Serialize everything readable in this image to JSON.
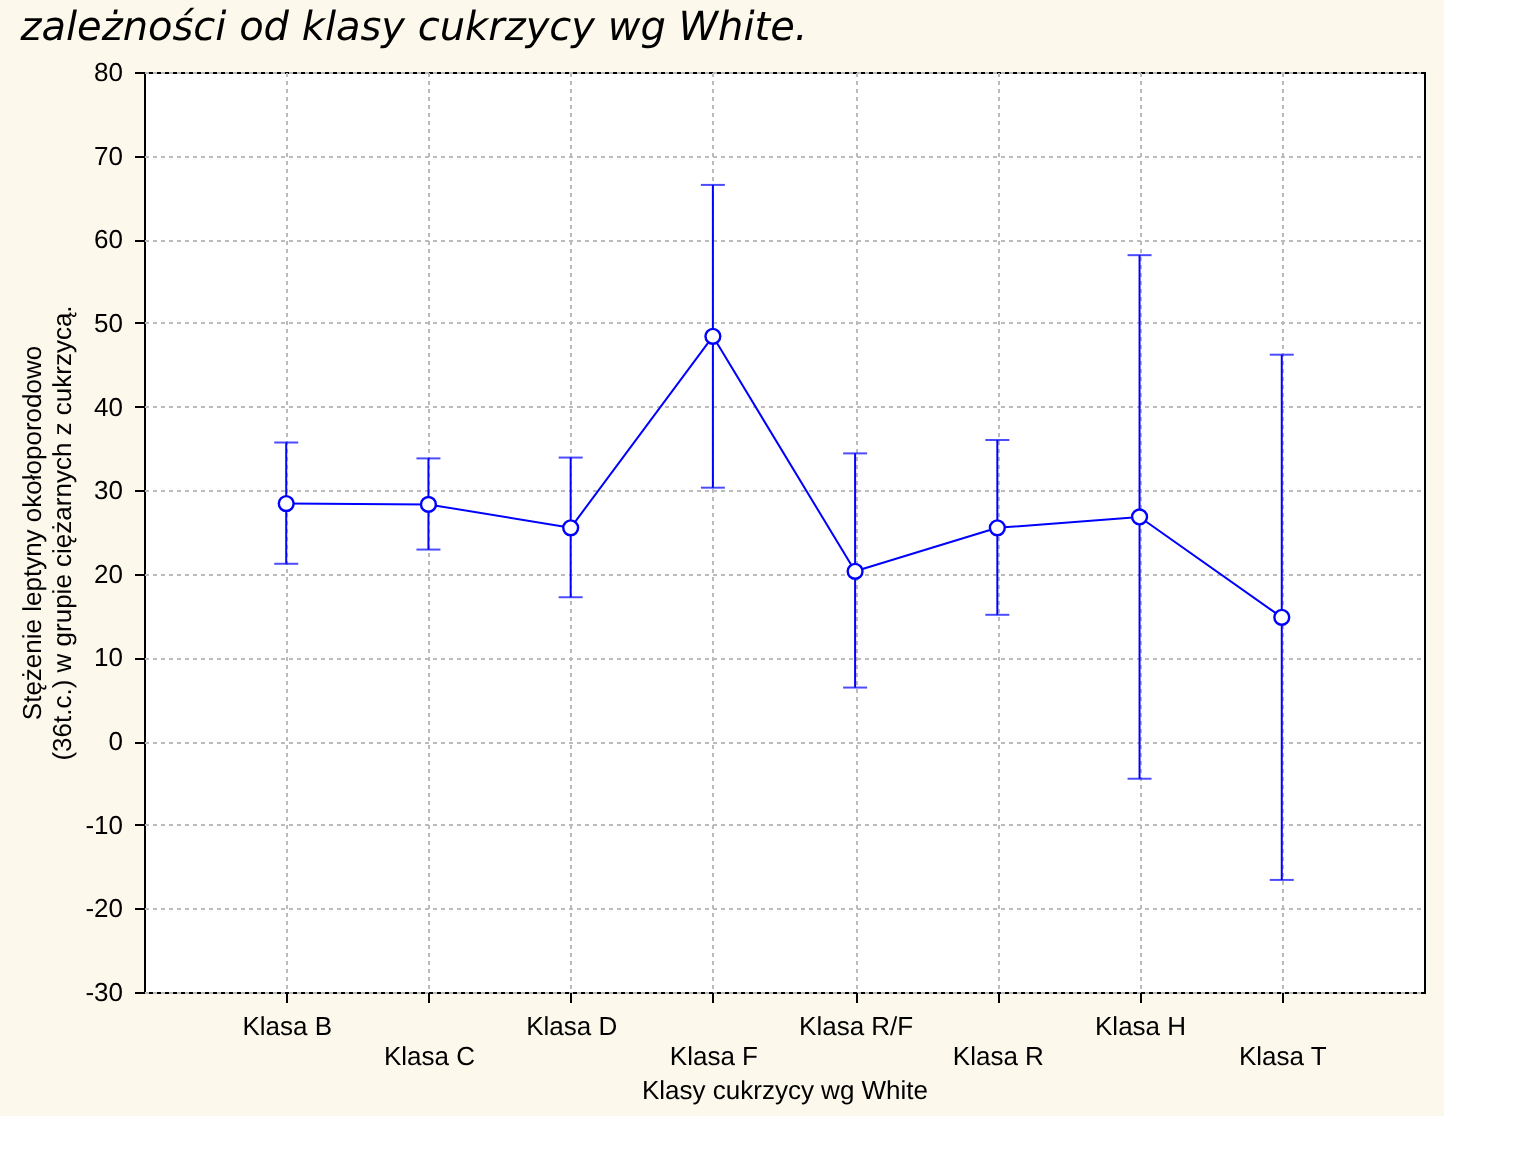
{
  "chart_data": {
    "type": "line",
    "title": "zależności od klasy cukrzycy wg White.",
    "xlabel": "Klasy cukrzycy wg White",
    "ylabel": "Stężenie leptyny okołoporodowo\n(36t.c.) w grupie ciężarnych z cukrzycą.",
    "categories": [
      "Klasa B",
      "Klasa C",
      "Klasa D",
      "Klasa F",
      "Klasa R/F",
      "Klasa R",
      "Klasa H",
      "Klasa T"
    ],
    "series": [
      {
        "color": "#0000ff",
        "values": [
          28.4,
          28.3,
          25.5,
          48.4,
          20.3,
          25.5,
          26.8,
          14.8
        ],
        "errors": [
          [
            21.2,
            35.7
          ],
          [
            22.9,
            33.8
          ],
          [
            17.2,
            33.9
          ],
          [
            30.3,
            66.5
          ],
          [
            6.4,
            34.4
          ],
          [
            15.1,
            36.0
          ],
          [
            -4.5,
            58.1
          ],
          [
            -16.6,
            46.2
          ]
        ]
      }
    ],
    "ylim": [
      -30,
      80
    ],
    "yticks": [
      -30,
      -20,
      -10,
      0,
      10,
      20,
      30,
      40,
      50,
      60,
      70,
      80
    ],
    "grid": true,
    "marker": "circle",
    "line_style": "solid"
  }
}
